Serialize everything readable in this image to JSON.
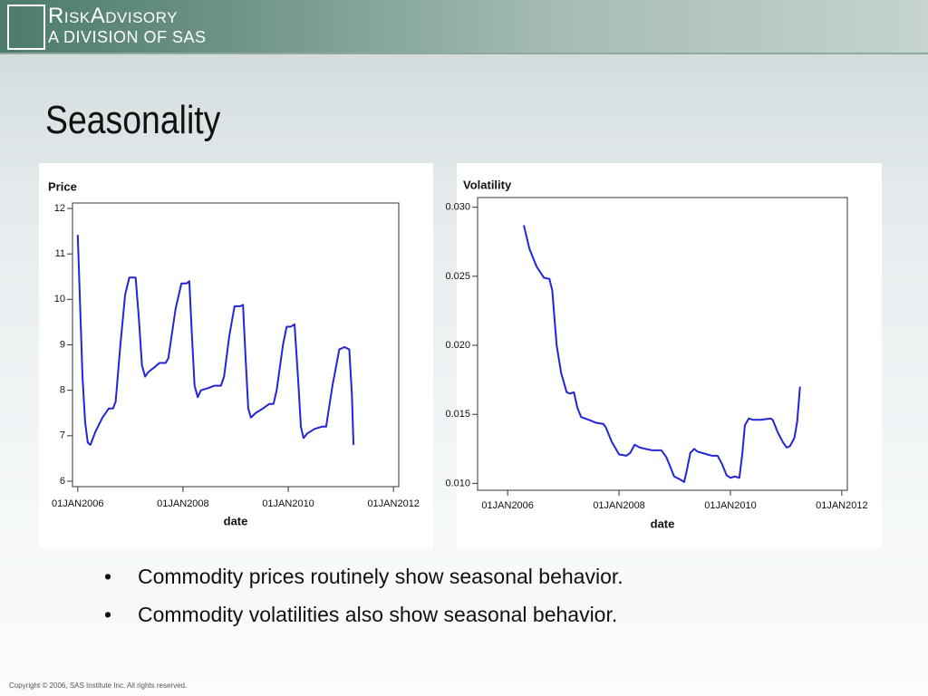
{
  "header": {
    "logo_line1": "RiskAdvisory",
    "logo_line2": "A DIVISION OF SAS"
  },
  "title": "Seasonality",
  "chart_data": [
    {
      "type": "line",
      "title": "Price",
      "x_label": "date",
      "color": "#2424d8",
      "x": [
        2006.0,
        2006.09,
        2006.14,
        2006.19,
        2006.24,
        2006.34,
        2006.47,
        2006.59,
        2006.67,
        2006.72,
        2006.81,
        2006.9,
        2006.98,
        2007.1,
        2007.16,
        2007.22,
        2007.28,
        2007.34,
        2007.45,
        2007.55,
        2007.67,
        2007.72,
        2007.86,
        2007.97,
        2008.07,
        2008.12,
        2008.17,
        2008.22,
        2008.28,
        2008.34,
        2008.48,
        2008.59,
        2008.72,
        2008.78,
        2008.88,
        2008.98,
        2009.09,
        2009.14,
        2009.19,
        2009.24,
        2009.29,
        2009.38,
        2009.52,
        2009.64,
        2009.72,
        2009.78,
        2009.9,
        2009.97,
        2010.05,
        2010.12,
        2010.19,
        2010.24,
        2010.29,
        2010.36,
        2010.5,
        2010.64,
        2010.72,
        2010.84,
        2010.97,
        2011.07,
        2011.16,
        2011.21,
        2011.24
      ],
      "values": [
        11.42,
        8.3,
        7.3,
        6.85,
        6.8,
        7.1,
        7.4,
        7.6,
        7.6,
        7.75,
        9.0,
        10.1,
        10.48,
        10.48,
        9.6,
        8.55,
        8.3,
        8.4,
        8.5,
        8.6,
        8.6,
        8.7,
        9.8,
        10.35,
        10.35,
        10.4,
        9.2,
        8.1,
        7.85,
        8.0,
        8.05,
        8.1,
        8.1,
        8.3,
        9.2,
        9.85,
        9.85,
        9.88,
        8.7,
        7.6,
        7.4,
        7.5,
        7.6,
        7.7,
        7.7,
        8.0,
        9.0,
        9.4,
        9.4,
        9.45,
        8.2,
        7.2,
        6.95,
        7.05,
        7.15,
        7.2,
        7.2,
        8.1,
        8.9,
        8.95,
        8.9,
        7.9,
        6.8
      ],
      "xlim": [
        2005.9,
        2012.1
      ],
      "xticks": [
        {
          "value": 2006,
          "label": "01JAN2006"
        },
        {
          "value": 2008,
          "label": "01JAN2008"
        },
        {
          "value": 2010,
          "label": "01JAN2010"
        },
        {
          "value": 2012,
          "label": "01JAN2012"
        }
      ],
      "ylim": [
        5.88,
        12.12
      ],
      "yticks": [
        6,
        7,
        8,
        9,
        10,
        11,
        12
      ]
    },
    {
      "type": "line",
      "title": "Volatility",
      "x_label": "date",
      "color": "#2424d8",
      "x": [
        2006.29,
        2006.39,
        2006.52,
        2006.65,
        2006.75,
        2006.8,
        2006.88,
        2006.96,
        2007.06,
        2007.12,
        2007.19,
        2007.25,
        2007.32,
        2007.46,
        2007.58,
        2007.72,
        2007.77,
        2007.87,
        2008.0,
        2008.13,
        2008.2,
        2008.28,
        2008.37,
        2008.47,
        2008.59,
        2008.76,
        2008.85,
        2008.99,
        2009.09,
        2009.17,
        2009.22,
        2009.28,
        2009.35,
        2009.41,
        2009.58,
        2009.67,
        2009.77,
        2009.85,
        2009.93,
        2010.0,
        2010.08,
        2010.16,
        2010.21,
        2010.26,
        2010.33,
        2010.41,
        2010.55,
        2010.72,
        2010.76,
        2010.85,
        2010.94,
        2011.01,
        2011.07,
        2011.15,
        2011.2,
        2011.25
      ],
      "values": [
        0.0287,
        0.027,
        0.0257,
        0.0249,
        0.0248,
        0.024,
        0.02,
        0.018,
        0.0166,
        0.0165,
        0.0166,
        0.0155,
        0.0148,
        0.0146,
        0.0144,
        0.0143,
        0.014,
        0.013,
        0.0121,
        0.012,
        0.0122,
        0.0128,
        0.0126,
        0.0125,
        0.0124,
        0.0124,
        0.0119,
        0.0105,
        0.0103,
        0.0101,
        0.011,
        0.0122,
        0.0125,
        0.0123,
        0.0121,
        0.012,
        0.012,
        0.0114,
        0.0106,
        0.0104,
        0.0105,
        0.0104,
        0.012,
        0.0142,
        0.0147,
        0.0146,
        0.0146,
        0.0147,
        0.0146,
        0.0137,
        0.013,
        0.0126,
        0.0127,
        0.0133,
        0.0145,
        0.017
      ],
      "xlim": [
        2005.46,
        2012.1
      ],
      "xticks": [
        {
          "value": 2006,
          "label": "01JAN2006"
        },
        {
          "value": 2008,
          "label": "01JAN2008"
        },
        {
          "value": 2010,
          "label": "01JAN2010"
        },
        {
          "value": 2012,
          "label": "01JAN2012"
        }
      ],
      "ylim": [
        0.0095,
        0.0307
      ],
      "yticks": [
        {
          "value": 0.01,
          "label": "0.010"
        },
        0.015,
        {
          "value": 0.02,
          "label": "0.020"
        },
        0.025,
        {
          "value": 0.03,
          "label": "0.030"
        }
      ]
    }
  ],
  "bullets": [
    "Commodity prices routinely show seasonal behavior.",
    "Commodity volatilities also show seasonal behavior."
  ],
  "footer": "Copyright © 2006, SAS Institute Inc. All rights reserved."
}
